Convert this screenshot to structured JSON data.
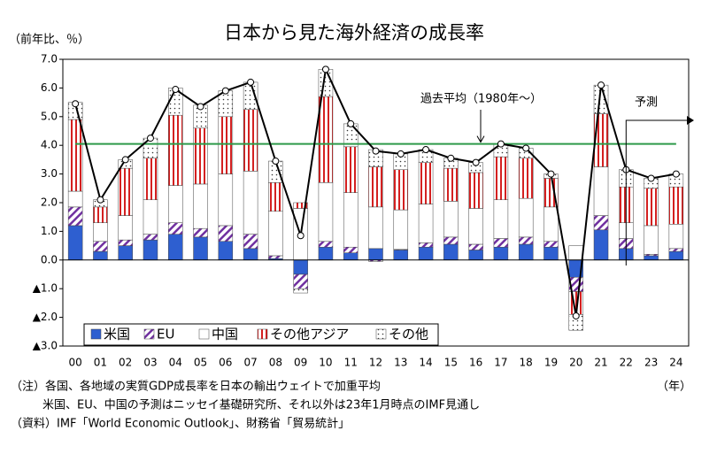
{
  "chart_data": {
    "type": "stacked_bar_line",
    "title": "日本から見た海外経済の成長率",
    "y_axis_label": "（前年比、％）",
    "x_axis_label": "（年）",
    "categories": [
      "00",
      "01",
      "02",
      "03",
      "04",
      "05",
      "06",
      "07",
      "08",
      "09",
      "10",
      "11",
      "12",
      "13",
      "14",
      "15",
      "16",
      "17",
      "18",
      "19",
      "20",
      "21",
      "22",
      "23",
      "24"
    ],
    "series": [
      {
        "name": "米国",
        "color": "#2e5fd0",
        "pattern": "solid",
        "values": [
          1.2,
          0.3,
          0.5,
          0.7,
          0.9,
          0.8,
          0.65,
          0.4,
          0.05,
          -0.5,
          0.45,
          0.25,
          0.4,
          0.35,
          0.45,
          0.55,
          0.35,
          0.45,
          0.55,
          0.45,
          -0.6,
          1.05,
          0.4,
          0.15,
          0.3
        ]
      },
      {
        "name": "EU",
        "color": "#7030a0",
        "pattern": "diagonal",
        "values": [
          0.65,
          0.35,
          0.2,
          0.2,
          0.4,
          0.3,
          0.55,
          0.5,
          0.1,
          -0.5,
          0.2,
          0.2,
          -0.05,
          0.02,
          0.15,
          0.25,
          0.2,
          0.3,
          0.25,
          0.2,
          -0.5,
          0.5,
          0.35,
          0.05,
          0.1
        ]
      },
      {
        "name": "中国",
        "color": "#ffffff",
        "pattern": "solid",
        "values": [
          0.55,
          0.65,
          0.85,
          1.2,
          1.3,
          1.55,
          1.8,
          2.2,
          1.55,
          1.8,
          2.05,
          1.9,
          1.45,
          1.38,
          1.35,
          1.25,
          1.25,
          1.35,
          1.35,
          1.2,
          0.5,
          1.7,
          0.55,
          1.0,
          0.85
        ]
      },
      {
        "name": "その他アジア",
        "color": "#d42020",
        "pattern": "vertical",
        "values": [
          2.5,
          0.55,
          1.65,
          1.45,
          2.45,
          1.95,
          2.0,
          2.15,
          1.0,
          0.2,
          3.0,
          1.6,
          1.4,
          1.4,
          1.45,
          1.15,
          1.25,
          1.5,
          1.4,
          1.0,
          -0.8,
          1.85,
          1.25,
          1.3,
          1.3
        ]
      },
      {
        "name": "その他",
        "color": "#333333",
        "pattern": "dots",
        "values": [
          0.6,
          0.25,
          0.3,
          0.7,
          0.95,
          0.8,
          0.9,
          0.95,
          0.75,
          -0.15,
          0.95,
          0.8,
          0.6,
          0.55,
          0.45,
          0.35,
          0.35,
          0.45,
          0.35,
          0.15,
          -0.55,
          1.0,
          0.6,
          0.35,
          0.45
        ]
      }
    ],
    "line": {
      "color": "#000000",
      "values": [
        5.45,
        2.1,
        3.5,
        4.25,
        5.95,
        5.35,
        5.9,
        6.2,
        3.45,
        0.85,
        6.65,
        4.75,
        3.8,
        3.7,
        3.85,
        3.55,
        3.4,
        4.05,
        3.9,
        3.0,
        -1.95,
        6.1,
        3.15,
        2.85,
        3.0
      ]
    },
    "reference_line": {
      "value": 4.05,
      "label": "過去平均（1980年～）",
      "color": "#2e9a4a"
    },
    "forecast_label": "予測",
    "ylim": [
      -3,
      7
    ],
    "yticks": [
      {
        "value": 7,
        "label": "7.0"
      },
      {
        "value": 6,
        "label": "6.0"
      },
      {
        "value": 5,
        "label": "5.0"
      },
      {
        "value": 4,
        "label": "4.0"
      },
      {
        "value": 3,
        "label": "3.0"
      },
      {
        "value": 2,
        "label": "2.0"
      },
      {
        "value": 1,
        "label": "1.0"
      },
      {
        "value": 0,
        "label": "0.0"
      },
      {
        "value": -1,
        "label": "▲1.0"
      },
      {
        "value": -2,
        "label": "▲2.0"
      },
      {
        "value": -3,
        "label": "▲3.0"
      }
    ],
    "legend": "bottom-left",
    "notes": [
      "（注）各国、各地域の実質GDP成長率を日本の輸出ウェイトで加重平均",
      "米国、EU、中国の予測はニッセイ基礎研究所、それ以外は23年1月時点のIMF見通し",
      "（資料）IMF「World Economic Outlook」、財務省「貿易統計」"
    ]
  }
}
